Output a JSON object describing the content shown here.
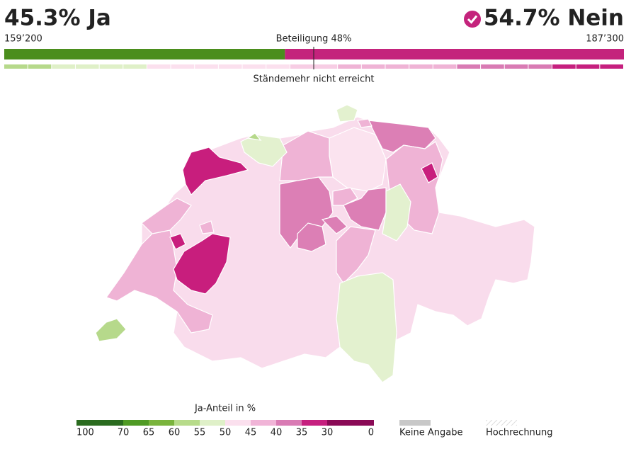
{
  "header": {
    "yes": {
      "text": "45.3% Ja",
      "share": 45.3,
      "votes": "159’200",
      "color": "#4b8e1d"
    },
    "no": {
      "text": "54.7% Nein",
      "share": 54.7,
      "votes": "187’300",
      "color": "#c4237c"
    },
    "turnout": "Beteiligung 48%"
  },
  "cantons_bar": {
    "colors": [
      "#b6d98b",
      "#b6d98b",
      "#dff0c8",
      "#dff0c8",
      "#dff0c8",
      "#dff0c8",
      "#fbe0ee",
      "#fbe0ee",
      "#fbe0ee",
      "#fbe0ee",
      "#fbe0ee",
      "#fbe0ee",
      "#f7cde4",
      "#f7cde4",
      "#efb3d5",
      "#efb3d5",
      "#efb3d5",
      "#efb3d5",
      "#efb3d5",
      "#d97bb4",
      "#d97bb4",
      "#d97bb4",
      "#d97bb4",
      "#c6207f",
      "#c6207f",
      "#c6207f"
    ]
  },
  "states_result": "Ständemehr nicht erreicht",
  "map": {
    "regions": [
      {
        "color": "#f9dcec"
      },
      {
        "color": "#b6d98b"
      },
      {
        "color": "#efb3d5"
      },
      {
        "color": "#c81e7d"
      },
      {
        "color": "#efb3d5"
      },
      {
        "color": "#c81e7d"
      },
      {
        "color": "#c81e7d"
      },
      {
        "color": "#dc7fb5"
      },
      {
        "color": "#fbe3ef"
      },
      {
        "color": "#efb3d5"
      },
      {
        "color": "#dc7fb5"
      },
      {
        "color": "#dc7fb5"
      },
      {
        "color": "#efb3d5"
      },
      {
        "color": "#c81e7d"
      },
      {
        "color": "#dc7fb5"
      },
      {
        "color": "#efb3d5"
      },
      {
        "color": "#dc7fb5"
      },
      {
        "color": "#efb3d5"
      },
      {
        "color": "#efb3d5"
      },
      {
        "color": "#e3f1cf"
      },
      {
        "color": "#e3f1cf"
      },
      {
        "color": "#e3f1cf"
      },
      {
        "color": "#b6d98b"
      },
      {
        "color": "#e3f1cf"
      },
      {
        "color": "#efb3d5"
      }
    ]
  },
  "legend": {
    "title": "Ja-Anteil in %",
    "ticks": [
      100,
      70,
      65,
      60,
      55,
      50,
      45,
      40,
      35,
      30,
      0
    ],
    "colors": [
      "#2a6b1f",
      "#4f9a24",
      "#7ab43d",
      "#b7db8a",
      "#dff0c8",
      "#fbe0ee",
      "#f0b4d7",
      "#d97bb4",
      "#c6207f",
      "#8a0a56"
    ],
    "no_data": {
      "label": "Keine Angabe",
      "color": "#c8c8c8"
    },
    "projection": {
      "label": "Hochrechnung"
    }
  }
}
